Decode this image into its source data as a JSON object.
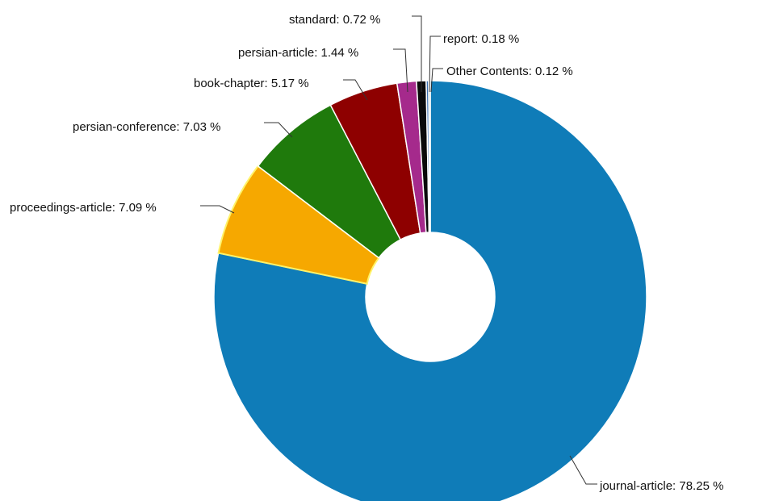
{
  "chart_data": {
    "type": "pie",
    "donut": true,
    "slices": [
      {
        "label": "journal-article: 78.25 %",
        "name": "journal-article",
        "value": 78.25,
        "color": "#0f7cb8"
      },
      {
        "label": "proceedings-article: 7.09 %",
        "name": "proceedings-article",
        "value": 7.09,
        "color": "#f6a800"
      },
      {
        "label": "persian-conference: 7.03 %",
        "name": "persian-conference",
        "value": 7.03,
        "color": "#1f7a0c"
      },
      {
        "label": "book-chapter: 5.17 %",
        "name": "book-chapter",
        "value": 5.17,
        "color": "#8e0000"
      },
      {
        "label": "persian-article: 1.44 %",
        "name": "persian-article",
        "value": 1.44,
        "color": "#a52a8c"
      },
      {
        "label": "standard: 0.72 %",
        "name": "standard",
        "value": 0.72,
        "color": "#0a0a0a"
      },
      {
        "label": "report: 0.18 %",
        "name": "report",
        "value": 0.18,
        "color": "#3a6fb0"
      },
      {
        "label": "Other Contents: 0.12 %",
        "name": "Other Contents",
        "value": 0.12,
        "color": "#7fa9a0"
      }
    ]
  }
}
